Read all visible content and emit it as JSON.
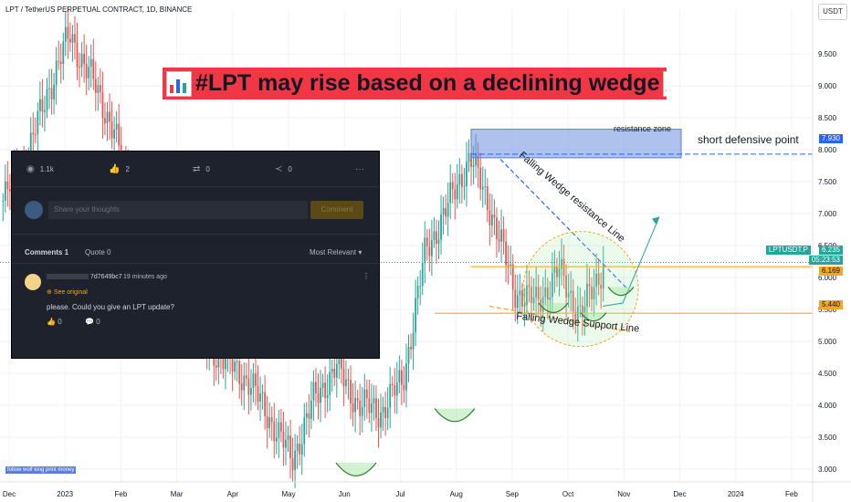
{
  "header": {
    "symbol_line": "LPT / TetherUS PERPETUAL CONTRACT, 1D, BINANCE",
    "currency_button": "USDT",
    "title": "#LPT may rise based on a declining wedge"
  },
  "chart_data": {
    "type": "candlestick",
    "symbol": "LPTUSDT.P",
    "interval": "1D",
    "exchange": "BINANCE",
    "ylim": [
      2.8,
      10.2
    ],
    "y_ticks": [
      "9.500",
      "9.000",
      "8.500",
      "8.000",
      "7.500",
      "7.000",
      "6.500",
      "6.000",
      "5.500",
      "5.000",
      "4.500",
      "4.000",
      "3.500",
      "3.000"
    ],
    "x_ticks": [
      "Dec",
      "2023",
      "Feb",
      "Mar",
      "Apr",
      "May",
      "Jun",
      "Jul",
      "Aug",
      "Sep",
      "Oct",
      "Nov",
      "Dec",
      "2024",
      "Feb"
    ],
    "price_series": [
      [
        "Dec",
        7.2
      ],
      [
        "Jan 1",
        7.8
      ],
      [
        "Jan 20",
        8.9
      ],
      [
        "Feb 1",
        9.8
      ],
      [
        "Feb 10",
        9.1
      ],
      [
        "Feb 20",
        8.3
      ],
      [
        "Mar 1",
        6.8
      ],
      [
        "Mar 15",
        6.0
      ],
      [
        "Apr 1",
        5.6
      ],
      [
        "Apr 20",
        5.0
      ],
      [
        "May 1",
        4.7
      ],
      [
        "May 20",
        4.4
      ],
      [
        "Jun 1",
        3.8
      ],
      [
        "Jun 10",
        3.15
      ],
      [
        "Jun 25",
        4.1
      ],
      [
        "Jul 10",
        4.6
      ],
      [
        "Jul 25",
        4.0
      ],
      [
        "Aug 5",
        3.9
      ],
      [
        "Aug 10",
        4.4
      ],
      [
        "Aug 14",
        6.4
      ],
      [
        "Aug 20",
        7.1
      ],
      [
        "Sep 1",
        7.9
      ],
      [
        "Sep 10",
        7.0
      ],
      [
        "Sep 20",
        5.8
      ],
      [
        "Oct 1",
        5.6
      ],
      [
        "Oct 10",
        6.1
      ],
      [
        "Oct 20",
        5.4
      ],
      [
        "Oct 28",
        6.2
      ]
    ],
    "current_price": "6.235",
    "current_countdown": "05:23:53",
    "price_labels": {
      "short_defensive": "7.930",
      "orange_level_1": "6.169",
      "orange_level_2": "5.440"
    },
    "annotations": {
      "resistance_zone": "resistance zone",
      "short_defensive": "short defensive point",
      "resistance_line": "Falling Wedge resistance Line",
      "support_line": "Falling Wedge Support Line",
      "footer": "follow wolf king print money"
    },
    "colors": {
      "up": "#26a69a",
      "down": "#ef5350",
      "zone": "#6d8fe0",
      "orange": "#f5a623",
      "banner": "#f23645",
      "price_tag": "#26a69a"
    }
  },
  "comments": {
    "stats": {
      "views": "1.1k",
      "likes": "2",
      "boosts": "0",
      "shares": "0"
    },
    "input_placeholder": "Share your thoughts",
    "comment_button": "Comment",
    "tabs": {
      "comments": "Comments 1",
      "quotes": "Quote 0"
    },
    "sort": "Most Relevant",
    "item": {
      "user": "7d7649bc7",
      "time": "19 minutes ago",
      "see_original": "See original",
      "text": "please. Could you give an LPT update?",
      "likes": "0",
      "replies": "0"
    }
  }
}
